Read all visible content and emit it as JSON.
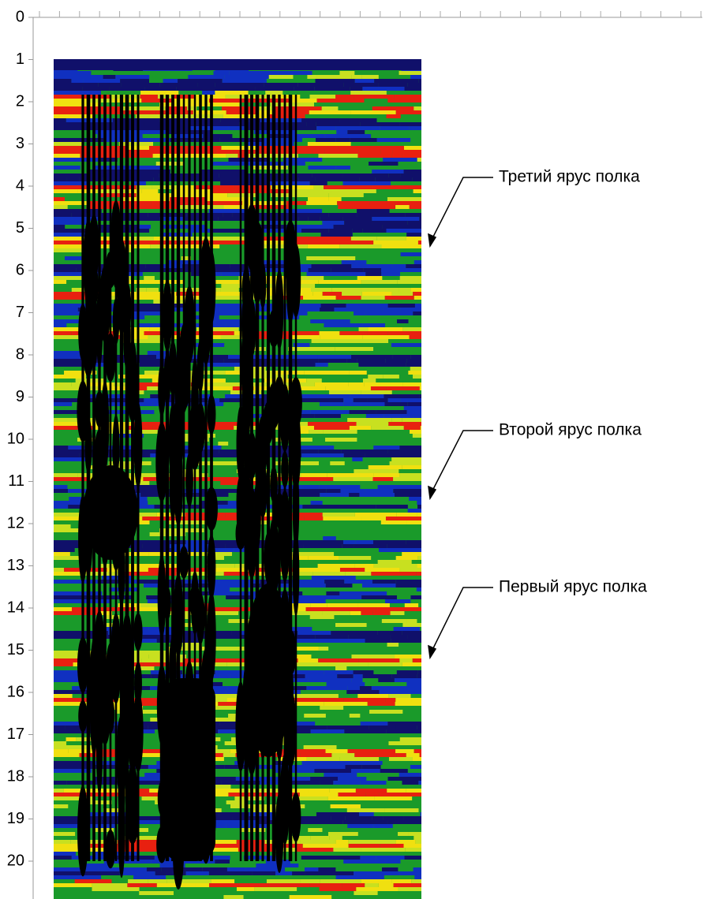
{
  "chart_data": {
    "type": "radargram",
    "ylim": [
      0,
      20
    ],
    "yticks": [
      0,
      1,
      2,
      3,
      4,
      5,
      6,
      7,
      8,
      9,
      10,
      11,
      12,
      13,
      14,
      15,
      16,
      17,
      18,
      19,
      20
    ],
    "annotations": [
      "Третий ярус полка",
      "Второй ярус полка",
      "Первый ярус полка"
    ]
  }
}
